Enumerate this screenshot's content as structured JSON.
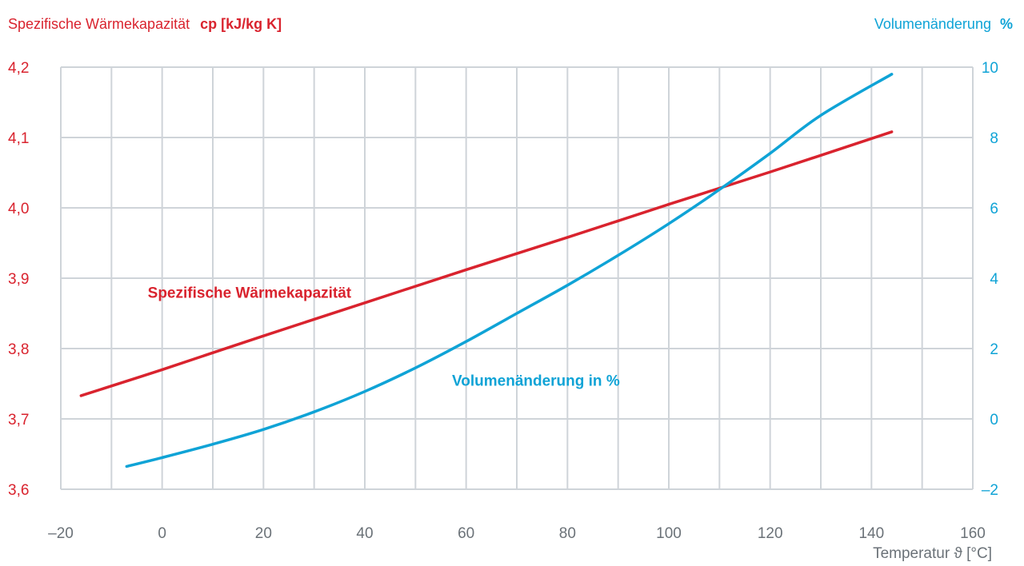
{
  "chart_data": {
    "type": "line",
    "title_left": {
      "text": "Spezifische Wärmekapazität",
      "unit": "cp [kJ/kg K]"
    },
    "title_right": {
      "text": "Volumenänderung",
      "unit": "%"
    },
    "xlabel": "Temperatur ϑ [°C]",
    "xlim": [
      -20,
      160
    ],
    "xticks": [
      -20,
      0,
      20,
      40,
      60,
      80,
      100,
      120,
      140,
      160
    ],
    "xtick_labels": [
      "–20",
      "0",
      "20",
      "40",
      "60",
      "80",
      "100",
      "120",
      "140",
      "160"
    ],
    "y_left": {
      "lim": [
        3.6,
        4.2
      ],
      "ticks": [
        3.6,
        3.7,
        3.8,
        3.9,
        4.0,
        4.1,
        4.2
      ],
      "tick_labels": [
        "3,6",
        "3,7",
        "3,8",
        "3,9",
        "4,0",
        "4,1",
        "4,2"
      ]
    },
    "y_right": {
      "lim": [
        -2,
        10
      ],
      "ticks": [
        -2,
        0,
        2,
        4,
        6,
        8,
        10
      ],
      "tick_labels": [
        "–2",
        "0",
        "2",
        "4",
        "6",
        "8",
        "10"
      ]
    },
    "grid": true,
    "colors": {
      "cp": "#d9232e",
      "volume": "#0fa3d6",
      "grid": "#cfd4d9",
      "axis_text_left": "#d9232e",
      "axis_text_right": "#0fa3d6",
      "axis_text_bottom": "#6b7278"
    },
    "series": [
      {
        "name": "Spezifische Wärmekapazität",
        "axis": "left",
        "color": "#d9232e",
        "x": [
          -16,
          0,
          20,
          40,
          60,
          80,
          100,
          120,
          144
        ],
        "y": [
          3.733,
          3.77,
          3.818,
          3.865,
          3.912,
          3.958,
          4.005,
          4.051,
          4.108
        ]
      },
      {
        "name": "Volumenänderung in %",
        "axis": "right",
        "color": "#0fa3d6",
        "x": [
          -7,
          0,
          10,
          20,
          30,
          40,
          50,
          60,
          70,
          80,
          90,
          100,
          110,
          120,
          130,
          144
        ],
        "y": [
          -1.35,
          -1.1,
          -0.72,
          -0.3,
          0.2,
          0.78,
          1.45,
          2.2,
          3.0,
          3.8,
          4.65,
          5.55,
          6.52,
          7.55,
          8.63,
          9.8
        ]
      }
    ],
    "annotations": [
      {
        "text": "Spezifische Wärmekapazität",
        "series": "cp",
        "x": 0,
        "y_left": 3.88
      },
      {
        "text": "Volumenänderung in %",
        "series": "volume",
        "x": 73,
        "y_right": 1.1
      }
    ]
  }
}
